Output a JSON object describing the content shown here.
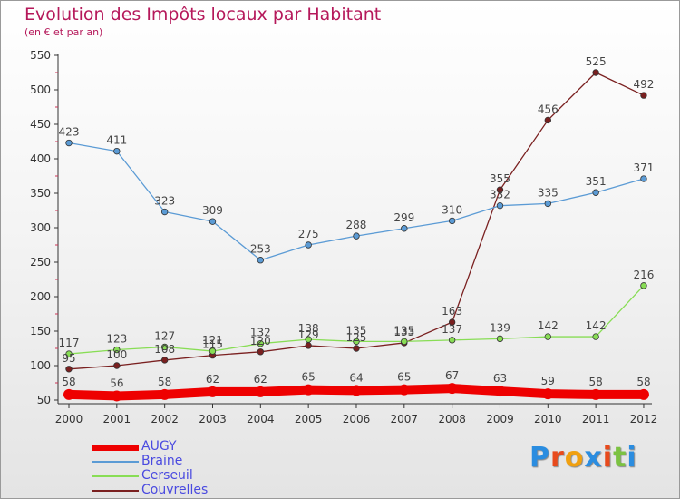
{
  "chart_data": {
    "type": "line",
    "title": "Evolution des Impôts locaux par Habitant",
    "subtitle": "(en € et par an)",
    "xlabel": "",
    "ylabel": "",
    "ylim": [
      50,
      550
    ],
    "yticks": [
      50,
      100,
      150,
      200,
      250,
      300,
      350,
      400,
      450,
      500,
      550
    ],
    "x": [
      "2000",
      "2001",
      "2002",
      "2003",
      "2004",
      "2005",
      "2006",
      "2007",
      "2008",
      "2009",
      "2010",
      "2011",
      "2012"
    ],
    "grid": false,
    "legend_position": "bottom-left",
    "series": [
      {
        "name": "AUGY",
        "color": "#ee0000",
        "values": [
          58,
          56,
          58,
          62,
          62,
          65,
          64,
          65,
          67,
          63,
          59,
          58,
          58
        ]
      },
      {
        "name": "Braine",
        "color": "#5b9bd5",
        "values": [
          423,
          411,
          323,
          309,
          253,
          275,
          288,
          299,
          310,
          332,
          335,
          351,
          371
        ]
      },
      {
        "name": "Cerseuil",
        "color": "#88dd55",
        "values": [
          117,
          123,
          127,
          121,
          132,
          138,
          135,
          135,
          137,
          139,
          142,
          142,
          216
        ]
      },
      {
        "name": "Couvrelles",
        "color": "#7a2020",
        "values": [
          95,
          100,
          108,
          115,
          120,
          129,
          125,
          133,
          163,
          355,
          456,
          525,
          492
        ]
      }
    ]
  },
  "logo": {
    "text": "Proxiti",
    "colors": [
      "#2b8de0",
      "#e84a1c",
      "#f0a010",
      "#2b8de0",
      "#e84a1c",
      "#7cc242",
      "#2b8de0"
    ]
  }
}
